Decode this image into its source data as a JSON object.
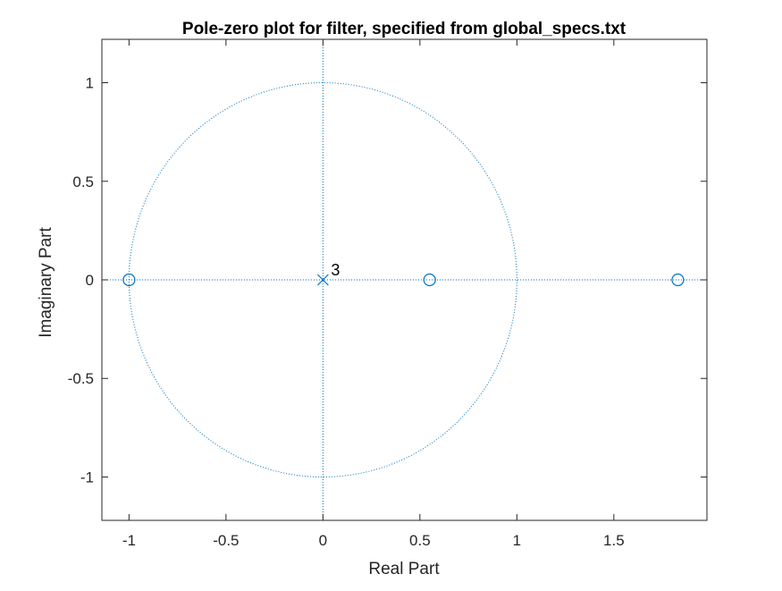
{
  "chart_data": {
    "type": "scatter",
    "title": "Pole-zero plot for filter, specified from global_specs.txt",
    "xlabel": "Real Part",
    "ylabel": "Imaginary Part",
    "xlim": [
      -1.14,
      1.98
    ],
    "ylim": [
      -1.22,
      1.22
    ],
    "xticks": [
      -1,
      -0.5,
      0,
      0.5,
      1,
      1.5
    ],
    "xtick_labels": [
      "-1",
      "-0.5",
      "0",
      "0.5",
      "1",
      "1.5"
    ],
    "yticks": [
      -1,
      -0.5,
      0,
      0.5,
      1
    ],
    "ytick_labels": [
      "-1",
      "-0.5",
      "0",
      "0.5",
      "1"
    ],
    "grid": false,
    "unit_circle": true,
    "series": [
      {
        "marker": "o",
        "points": [
          {
            "x": -1,
            "y": 0
          },
          {
            "x": 0.55,
            "y": 0
          },
          {
            "x": 1.83,
            "y": 0
          }
        ]
      },
      {
        "marker": "x",
        "points": [
          {
            "x": 0,
            "y": 0
          }
        ]
      }
    ],
    "annotations": [
      {
        "text": "3",
        "x": 0,
        "y": 0
      }
    ],
    "colors": {
      "marks": "#0072BD",
      "axes": "#262626"
    }
  }
}
